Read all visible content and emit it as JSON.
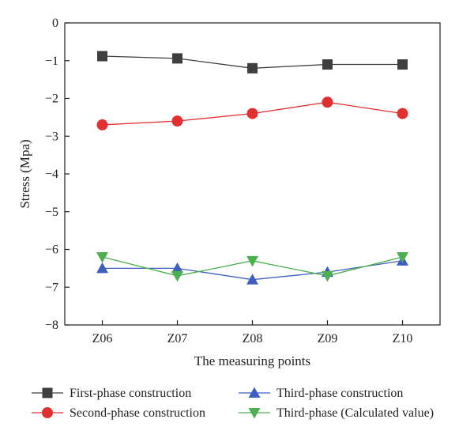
{
  "chart_data": {
    "type": "line",
    "xlabel": "The measuring points",
    "ylabel": "Stress (Mpa)",
    "categories": [
      "Z06",
      "Z07",
      "Z08",
      "Z09",
      "Z10"
    ],
    "ylim": [
      -8,
      0
    ],
    "yticks": [
      0,
      -1,
      -2,
      -3,
      -4,
      -5,
      -6,
      -7,
      -8
    ],
    "ytick_labels": [
      "0",
      "−1",
      "−2",
      "−3",
      "−4",
      "−5",
      "−6",
      "−7",
      "−8"
    ],
    "grid": false,
    "legend_position": "bottom",
    "series": [
      {
        "name": "First-phase construction",
        "values": [
          -0.88,
          -0.94,
          -1.2,
          -1.1,
          -1.1
        ],
        "color": "#3f3f3f",
        "marker": "square"
      },
      {
        "name": "Second-phase construction",
        "values": [
          -2.7,
          -2.6,
          -2.4,
          -2.1,
          -2.4
        ],
        "color": "#e03030",
        "marker": "circle"
      },
      {
        "name": "Third-phase construction",
        "values": [
          -6.5,
          -6.5,
          -6.8,
          -6.6,
          -6.3
        ],
        "color": "#3f5fbf",
        "marker": "triangle-up"
      },
      {
        "name": "Third-phase (Calculated value)",
        "values": [
          -6.2,
          -6.7,
          -6.3,
          -6.7,
          -6.2
        ],
        "color": "#4caf50",
        "marker": "triangle-down"
      }
    ]
  }
}
